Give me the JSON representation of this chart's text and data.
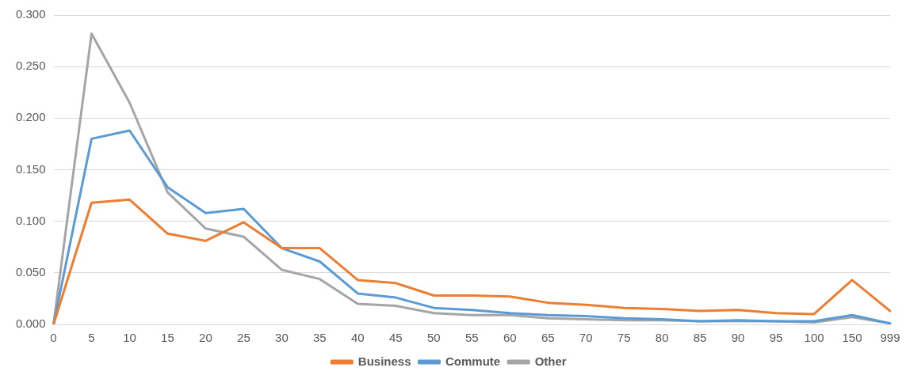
{
  "chart_data": {
    "type": "line",
    "categories": [
      "0",
      "5",
      "10",
      "15",
      "20",
      "25",
      "30",
      "35",
      "40",
      "45",
      "50",
      "55",
      "60",
      "65",
      "70",
      "75",
      "80",
      "85",
      "90",
      "95",
      "100",
      "150",
      "999"
    ],
    "series": [
      {
        "name": "Business",
        "color": "#ed7d31",
        "values": [
          0,
          0.118,
          0.121,
          0.088,
          0.081,
          0.099,
          0.074,
          0.074,
          0.043,
          0.04,
          0.028,
          0.028,
          0.027,
          0.021,
          0.019,
          0.016,
          0.015,
          0.013,
          0.014,
          0.011,
          0.01,
          0.043,
          0.013
        ]
      },
      {
        "name": "Commute",
        "color": "#5b9bd5",
        "values": [
          0,
          0.18,
          0.188,
          0.133,
          0.108,
          0.112,
          0.074,
          0.061,
          0.03,
          0.026,
          0.016,
          0.014,
          0.011,
          0.009,
          0.008,
          0.006,
          0.005,
          0.003,
          0.004,
          0.003,
          0.003,
          0.009,
          0.001
        ]
      },
      {
        "name": "Other",
        "color": "#a5a5a5",
        "values": [
          0,
          0.282,
          0.215,
          0.128,
          0.093,
          0.085,
          0.053,
          0.044,
          0.02,
          0.018,
          0.011,
          0.009,
          0.009,
          0.006,
          0.005,
          0.004,
          0.004,
          0.003,
          0.003,
          0.003,
          0.002,
          0.007,
          0.001
        ]
      }
    ],
    "ylim": [
      0,
      0.3
    ],
    "yticks": [
      {
        "value": 0,
        "label": "0.000"
      },
      {
        "value": 0.05,
        "label": "0.050"
      },
      {
        "value": 0.1,
        "label": "0.100"
      },
      {
        "value": 0.15,
        "label": "0.150"
      },
      {
        "value": 0.2,
        "label": "0.200"
      },
      {
        "value": 0.25,
        "label": "0.250"
      },
      {
        "value": 0.3,
        "label": "0.300"
      }
    ],
    "grid": "y",
    "legend": "bottom",
    "marker": "none",
    "line_style": "solid"
  }
}
